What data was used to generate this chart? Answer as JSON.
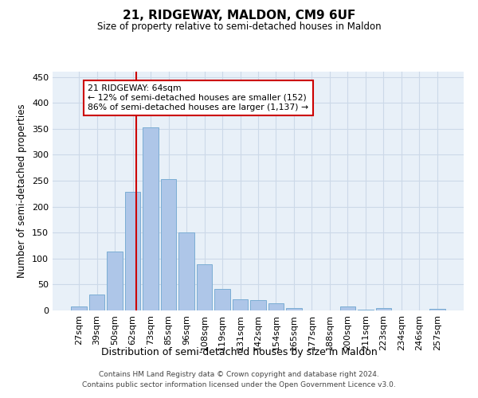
{
  "title": "21, RIDGEWAY, MALDON, CM9 6UF",
  "subtitle": "Size of property relative to semi-detached houses in Maldon",
  "xlabel": "Distribution of semi-detached houses by size in Maldon",
  "ylabel": "Number of semi-detached properties",
  "categories": [
    "27sqm",
    "39sqm",
    "50sqm",
    "62sqm",
    "73sqm",
    "85sqm",
    "96sqm",
    "108sqm",
    "119sqm",
    "131sqm",
    "142sqm",
    "154sqm",
    "165sqm",
    "177sqm",
    "188sqm",
    "200sqm",
    "211sqm",
    "223sqm",
    "234sqm",
    "246sqm",
    "257sqm"
  ],
  "values": [
    7,
    30,
    113,
    228,
    352,
    253,
    151,
    89,
    42,
    22,
    20,
    14,
    5,
    0,
    0,
    7,
    2,
    4,
    0,
    0,
    3
  ],
  "bar_color": "#aec6e8",
  "bar_edge_color": "#7badd4",
  "grid_color": "#ccd9e8",
  "background_color": "#e8f0f8",
  "annotation_text": "21 RIDGEWAY: 64sqm\n← 12% of semi-detached houses are smaller (152)\n86% of semi-detached houses are larger (1,137) →",
  "annotation_box_color": "#ffffff",
  "annotation_box_edge": "#cc0000",
  "marker_color": "#cc0000",
  "footer": "Contains HM Land Registry data © Crown copyright and database right 2024.\nContains public sector information licensed under the Open Government Licence v3.0.",
  "ylim": [
    0,
    460
  ],
  "yticks": [
    0,
    50,
    100,
    150,
    200,
    250,
    300,
    350,
    400,
    450
  ]
}
